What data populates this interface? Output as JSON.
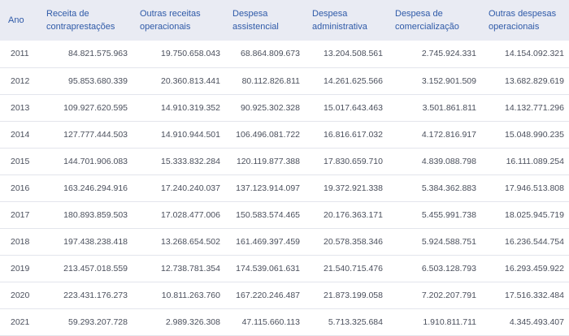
{
  "table": {
    "headers": [
      "Ano",
      "Receita de contraprestações",
      "Outras receitas operacionais",
      "Despesa assistencial",
      "Despesa administrativa",
      "Despesa de comercialização",
      "Outras despesas operacionais"
    ],
    "rows": [
      [
        "2011",
        "84.821.575.963",
        "19.750.658.043",
        "68.864.809.673",
        "13.204.508.561",
        "2.745.924.331",
        "14.154.092.321"
      ],
      [
        "2012",
        "95.853.680.339",
        "20.360.813.441",
        "80.112.826.811",
        "14.261.625.566",
        "3.152.901.509",
        "13.682.829.619"
      ],
      [
        "2013",
        "109.927.620.595",
        "14.910.319.352",
        "90.925.302.328",
        "15.017.643.463",
        "3.501.861.811",
        "14.132.771.296"
      ],
      [
        "2014",
        "127.777.444.503",
        "14.910.944.501",
        "106.496.081.722",
        "16.816.617.032",
        "4.172.816.917",
        "15.048.990.235"
      ],
      [
        "2015",
        "144.701.906.083",
        "15.333.832.284",
        "120.119.877.388",
        "17.830.659.710",
        "4.839.088.798",
        "16.111.089.254"
      ],
      [
        "2016",
        "163.246.294.916",
        "17.240.240.037",
        "137.123.914.097",
        "19.372.921.338",
        "5.384.362.883",
        "17.946.513.808"
      ],
      [
        "2017",
        "180.893.859.503",
        "17.028.477.006",
        "150.583.574.465",
        "20.176.363.171",
        "5.455.991.738",
        "18.025.945.719"
      ],
      [
        "2018",
        "197.438.238.418",
        "13.268.654.502",
        "161.469.397.459",
        "20.578.358.346",
        "5.924.588.751",
        "16.236.544.754"
      ],
      [
        "2019",
        "213.457.018.559",
        "12.738.781.354",
        "174.539.061.631",
        "21.540.715.476",
        "6.503.128.793",
        "16.293.459.922"
      ],
      [
        "2020",
        "223.431.176.273",
        "10.811.263.760",
        "167.220.246.487",
        "21.873.199.058",
        "7.202.207.791",
        "17.516.332.484"
      ],
      [
        "2021",
        "59.293.207.728",
        "2.989.326.308",
        "47.115.660.113",
        "5.713.325.684",
        "1.910.811.711",
        "4.345.493.407"
      ]
    ]
  }
}
